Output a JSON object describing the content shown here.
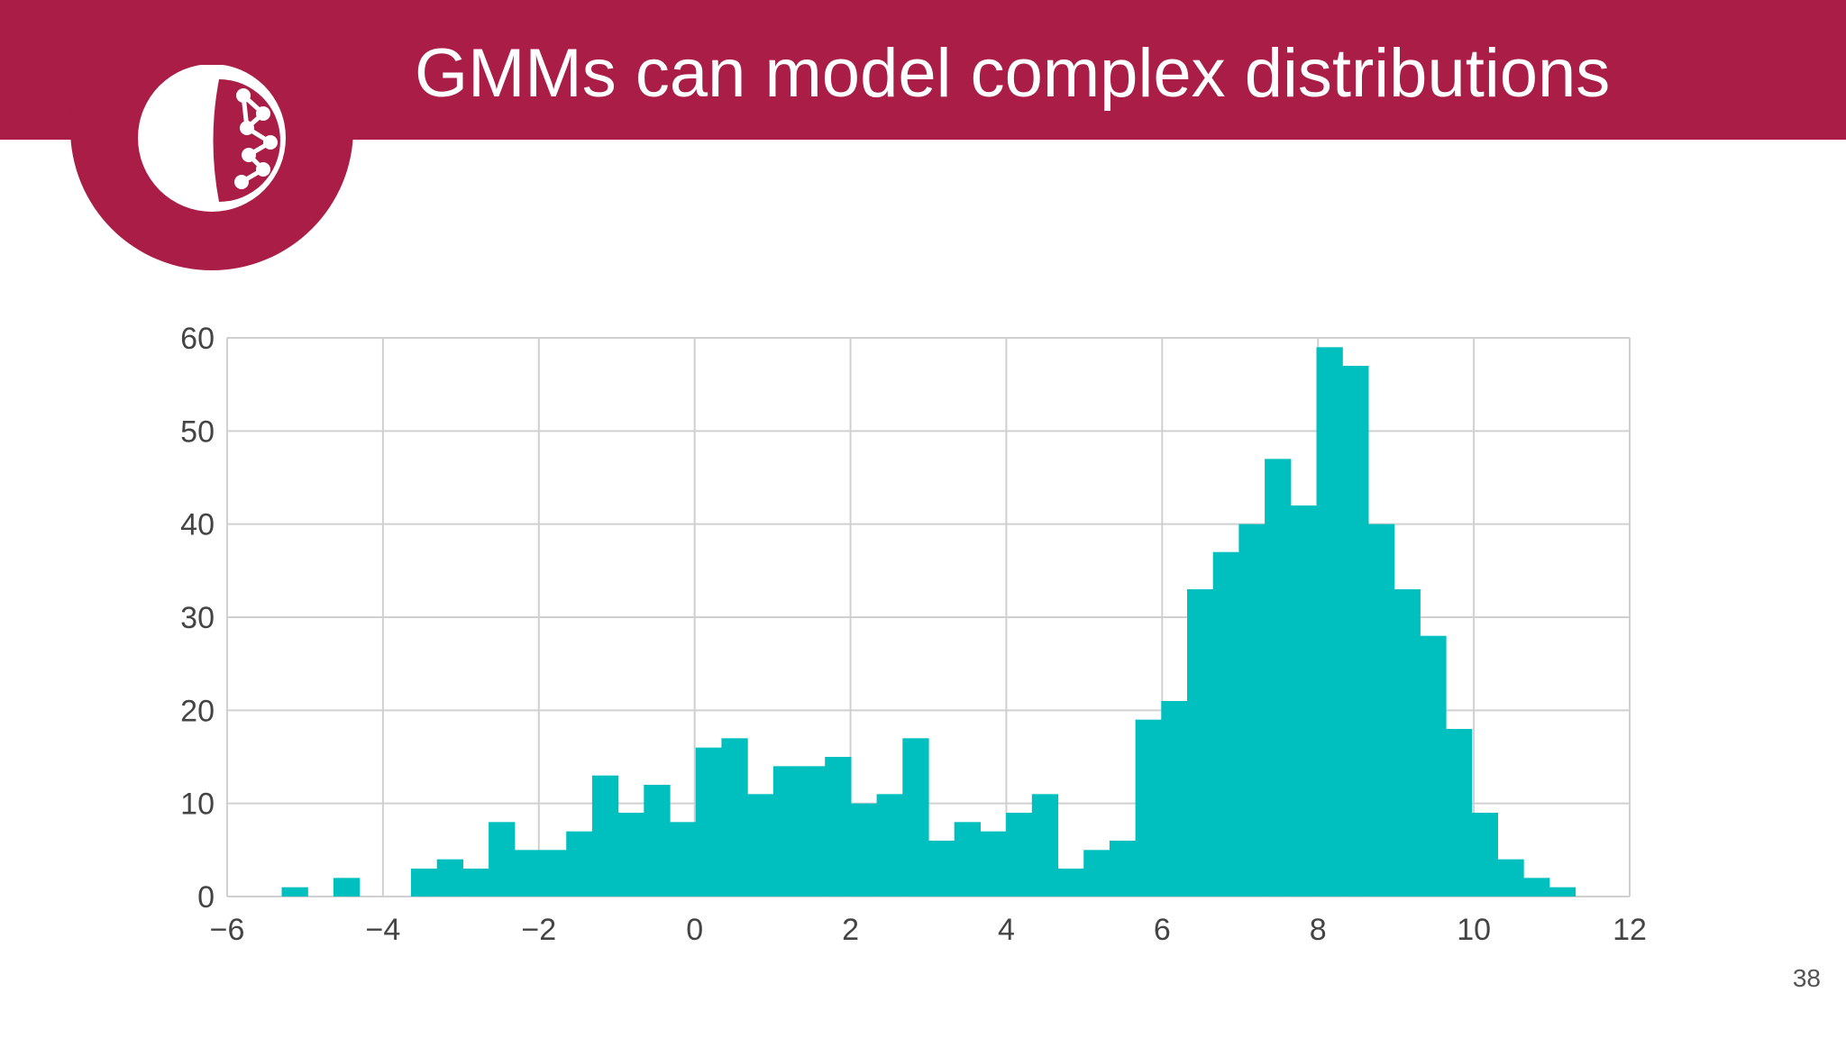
{
  "slide": {
    "title": "GMMs can model complex distributions",
    "page_number": "38"
  },
  "colors": {
    "header": "#a91d47",
    "bars": "#00bfbf",
    "grid": "#d0d0d0"
  },
  "logo": {
    "icon": "pomegranate-network-icon"
  },
  "chart_data": {
    "type": "bar",
    "subtype": "histogram",
    "title": "",
    "xlabel": "",
    "ylabel": "",
    "xlim": [
      -6,
      12
    ],
    "ylim": [
      0,
      60
    ],
    "xticks": [
      -6,
      -4,
      -2,
      0,
      2,
      4,
      6,
      8,
      10,
      12
    ],
    "xtick_labels": [
      "−6",
      "−4",
      "−2",
      "0",
      "2",
      "4",
      "6",
      "8",
      "10",
      "12"
    ],
    "yticks": [
      0,
      10,
      20,
      30,
      40,
      50,
      60
    ],
    "ytick_labels": [
      "0",
      "10",
      "20",
      "30",
      "40",
      "50",
      "60"
    ],
    "grid": true,
    "bin_start": -5.3,
    "bin_width": 0.332,
    "counts": [
      1,
      0,
      2,
      0,
      0,
      3,
      4,
      3,
      8,
      5,
      5,
      7,
      13,
      9,
      12,
      8,
      16,
      17,
      11,
      14,
      14,
      15,
      10,
      11,
      17,
      6,
      8,
      7,
      9,
      11,
      3,
      5,
      6,
      19,
      21,
      33,
      37,
      40,
      47,
      42,
      59,
      57,
      40,
      33,
      28,
      18,
      9,
      4,
      2,
      1
    ]
  }
}
